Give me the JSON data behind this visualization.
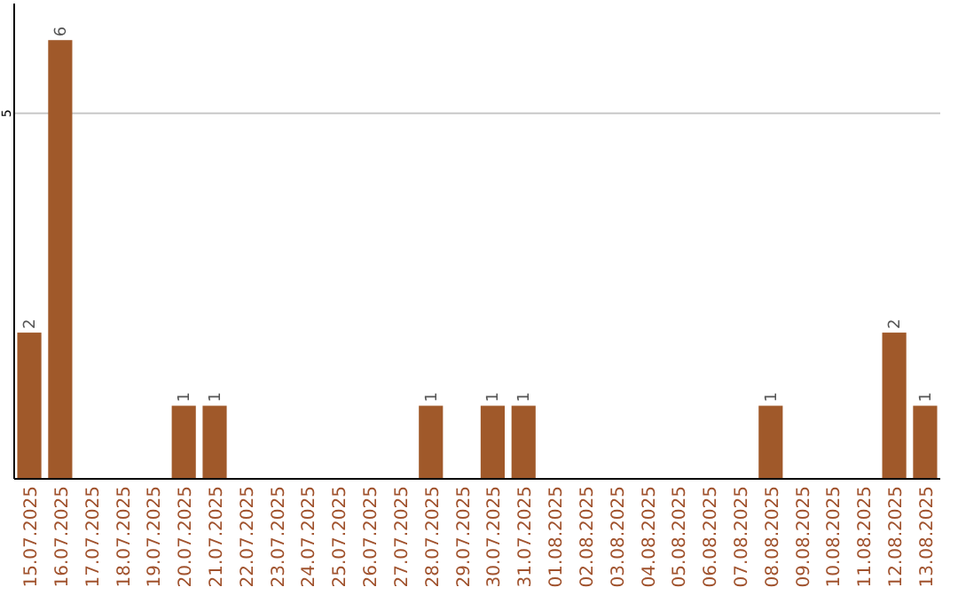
{
  "chart_data": {
    "type": "bar",
    "categories": [
      "15.07.2025",
      "16.07.2025",
      "17.07.2025",
      "18.07.2025",
      "19.07.2025",
      "20.07.2025",
      "21.07.2025",
      "22.07.2025",
      "23.07.2025",
      "24.07.2025",
      "25.07.2025",
      "26.07.2025",
      "27.07.2025",
      "28.07.2025",
      "29.07.2025",
      "30.07.2025",
      "31.07.2025",
      "01.08.2025",
      "02.08.2025",
      "03.08.2025",
      "04.08.2025",
      "05.08.2025",
      "06.08.2025",
      "07.08.2025",
      "08.08.2025",
      "09.08.2025",
      "10.08.2025",
      "11.08.2025",
      "12.08.2025",
      "13.08.2025"
    ],
    "values": [
      2,
      6,
      0,
      0,
      0,
      1,
      1,
      0,
      0,
      0,
      0,
      0,
      0,
      1,
      0,
      1,
      1,
      0,
      0,
      0,
      0,
      0,
      0,
      0,
      1,
      0,
      0,
      0,
      2,
      1
    ],
    "value_labels": [
      "2",
      "6",
      null,
      null,
      null,
      "1",
      "1",
      null,
      null,
      null,
      null,
      null,
      null,
      "1",
      null,
      "1",
      "1",
      null,
      null,
      null,
      null,
      null,
      null,
      null,
      "1",
      null,
      null,
      null,
      "2",
      "1"
    ],
    "color": "#a0592a",
    "ylim": [
      0,
      6.5
    ],
    "yticks": [
      5
    ],
    "grid": "y"
  }
}
